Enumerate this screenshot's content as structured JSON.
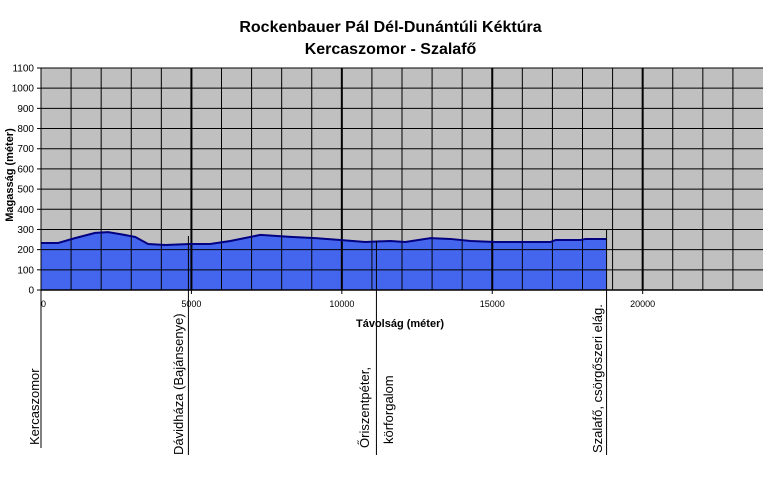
{
  "title": {
    "line1": "Rockenbauer Pál Dél-Dunántúli Kéktúra",
    "line2": "Kercaszomor - Szalafő"
  },
  "chart_data": {
    "type": "area",
    "title": "Rockenbauer Pál Dél-Dunántúli Kéktúra / Kercaszomor - Szalafő",
    "xlabel": "Távolság (méter)",
    "ylabel": "Magasság (méter)",
    "xlim": [
      0,
      24000
    ],
    "ylim": [
      0,
      1100
    ],
    "x_ticks": [
      0,
      5000,
      10000,
      15000,
      20000
    ],
    "y_ticks": [
      0,
      100,
      200,
      300,
      400,
      500,
      600,
      700,
      800,
      900,
      1000,
      1100
    ],
    "grid": true,
    "grid_x_step": 1000,
    "grid_y_step": 100,
    "plot_background": "#c0c0c0",
    "fill_color": "#4466ee",
    "line_color": "#000080",
    "x": [
      0,
      570,
      1130,
      1800,
      2230,
      2630,
      3130,
      3560,
      4130,
      4960,
      5620,
      6290,
      7290,
      8290,
      9120,
      9950,
      10780,
      11610,
      12110,
      12950,
      13610,
      14280,
      15110,
      16940,
      17110,
      17940,
      18100,
      18800
    ],
    "values": [
      233,
      233,
      257,
      283,
      287,
      277,
      263,
      228,
      223,
      228,
      228,
      243,
      273,
      263,
      257,
      248,
      238,
      243,
      238,
      257,
      253,
      243,
      238,
      238,
      248,
      248,
      253,
      253
    ],
    "waypoints": [
      {
        "distance": 0,
        "label": "Kercaszomor"
      },
      {
        "distance": 4900,
        "label": "Dávidháza (Bajánsenye)"
      },
      {
        "distance": 11150,
        "label": "Őriszentpéter,\nkörforgalom"
      },
      {
        "distance": 18800,
        "label": "Szalafő, csörgőszeri elág."
      }
    ]
  },
  "axes": {
    "xlabel": "Távolság (méter)",
    "ylabel": "Magasság (méter)"
  },
  "waypoint_labels": {
    "w0": "Kercaszomor",
    "w1": "Dávidháza (Bajánsenye)",
    "w2a": "Őriszentpéter,",
    "w2b": "körforgalom",
    "w3": "Szalafő, csörgőszeri elág."
  }
}
